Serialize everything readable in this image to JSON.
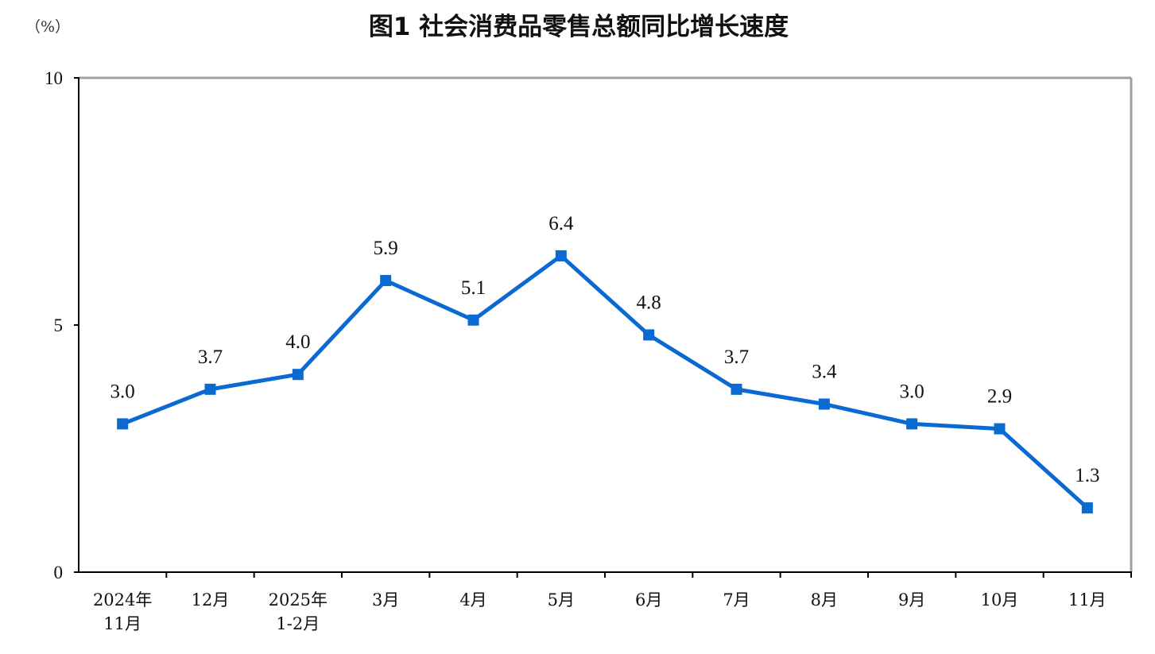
{
  "chart_data": {
    "type": "line",
    "title": "图1  社会消费品零售总额同比增长速度",
    "ylabel": "（%）",
    "xlabel": "",
    "ylim": [
      0,
      10
    ],
    "yticks": [
      "0",
      "5",
      "10"
    ],
    "categories": [
      [
        "2024年",
        "11月"
      ],
      [
        "12月"
      ],
      [
        "2025年",
        "1-2月"
      ],
      [
        "3月"
      ],
      [
        "4月"
      ],
      [
        "5月"
      ],
      [
        "6月"
      ],
      [
        "7月"
      ],
      [
        "8月"
      ],
      [
        "9月"
      ],
      [
        "10月"
      ],
      [
        "11月"
      ]
    ],
    "values": [
      3.0,
      3.7,
      4.0,
      5.9,
      5.1,
      6.4,
      4.8,
      3.7,
      3.4,
      3.0,
      2.9,
      1.3
    ],
    "data_labels": [
      "3.0",
      "3.7",
      "4.0",
      "5.9",
      "5.1",
      "6.4",
      "4.8",
      "3.7",
      "3.4",
      "3.0",
      "2.9",
      "1.3"
    ],
    "series_color": "#0a6ad1",
    "axis_color": "#000000",
    "frame_color": "#a0a0a0",
    "grid": false,
    "legend": "none",
    "marker": "square"
  }
}
